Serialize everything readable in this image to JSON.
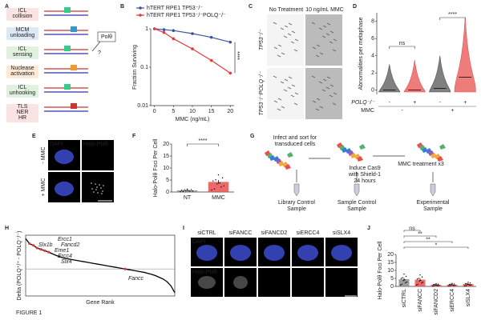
{
  "figure_label": "FIGURE 1",
  "panel_a": {
    "letter": "A",
    "steps": [
      [
        "ICL",
        "collision"
      ],
      [
        "MCM",
        "unloading"
      ],
      [
        "ICL",
        "sensing"
      ],
      [
        "Nuclease",
        "activation"
      ],
      [
        "ICL",
        "unhooking"
      ],
      [
        "TLS",
        "NER",
        "HR"
      ]
    ],
    "enzyme": "Polθ",
    "question": "?"
  },
  "panel_c": {
    "letter": "C",
    "columns": [
      "No Treatment",
      "10 ng/mL MMC"
    ],
    "rows": [
      "TP53⁻/⁻",
      "TP53⁻/⁻POLQ⁻/⁻"
    ]
  },
  "panel_e": {
    "letter": "E",
    "columns": [
      "DAPI",
      "Halo-Polθ"
    ],
    "rows": [
      "- MMC",
      "+ MMC"
    ]
  },
  "panel_g": {
    "letter": "G",
    "steps": [
      [
        "Infect and sort for",
        "transduced cells"
      ],
      [
        "Induce Cas9",
        "with Shield-1",
        "24 hours"
      ],
      [
        "MMC treatment x3"
      ]
    ],
    "samples": [
      [
        "Library Control",
        "Sample"
      ],
      [
        "Sample Control",
        "Sample"
      ],
      [
        "Experimental",
        "Sample"
      ]
    ]
  },
  "panel_i": {
    "letter": "I",
    "columns": [
      "siCTRL",
      "siFANCC",
      "siFANCD2",
      "siERCC4",
      "siSLX4"
    ],
    "rows": [
      "DAPI",
      "Halo-Polθ"
    ]
  },
  "chart_data": [
    {
      "letter": "B",
      "type": "line",
      "x": [
        0,
        2.5,
        5,
        10,
        15,
        20
      ],
      "xlim": [
        -1,
        21
      ],
      "xticks": [
        0,
        5,
        10,
        15,
        20
      ],
      "ylim": [
        0.01,
        1
      ],
      "yticks": [
        0.01,
        0.1,
        1
      ],
      "log_scale": true,
      "xlabel": "MMC (ng/mL)",
      "ylabel": "Fraction Surviving",
      "annotation": "****",
      "series": [
        {
          "name": "hTERT RPE1 TP53⁻/⁻",
          "color": "#3a54a4",
          "values": [
            1,
            0.95,
            0.9,
            0.75,
            0.6,
            0.45
          ]
        },
        {
          "name": "hTERT RPE1 TP53⁻/⁻POLQ⁻/⁻",
          "color": "#e03a3a",
          "values": [
            1,
            0.8,
            0.55,
            0.3,
            0.15,
            0.07
          ]
        }
      ]
    },
    {
      "letter": "D",
      "type": "violin",
      "ylabel": "Abnormalities per metaphase",
      "ylim": [
        -0.5,
        9
      ],
      "yticks": [
        0,
        2,
        4,
        6,
        8
      ],
      "values": [
        0,
        0,
        0.2,
        1.5
      ],
      "maxima": [
        3,
        3.5,
        4,
        8.5
      ],
      "colors": [
        "#555555",
        "#e8504f",
        "#555555",
        "#e8504f"
      ],
      "row_labels": [
        "POLQ⁻/⁻",
        "MMC"
      ],
      "polq_signs": [
        "-",
        "+",
        "-",
        "+"
      ],
      "mmc_signs": [
        "-",
        "+"
      ],
      "annotations": [
        "ns",
        "****"
      ]
    },
    {
      "letter": "F",
      "type": "bar",
      "categories": [
        "NT",
        "MMC"
      ],
      "values": [
        0.7,
        4.2
      ],
      "errors": [
        0.3,
        0.8
      ],
      "colors": [
        "#8c8c8c",
        "#e8504f"
      ],
      "ylim": [
        0,
        20
      ],
      "yticks": [
        0,
        5,
        10,
        15,
        20
      ],
      "ylabel": "Halo-Polθ Foci Per Cell",
      "annotation": "****"
    },
    {
      "letter": "H",
      "type": "rank",
      "ylim": [
        -0.8,
        1
      ],
      "baseline": 0,
      "xlabel": "Gene Rank",
      "ylabel": "Delta (POLQ⁺/⁺ - POLQ⁻/⁻)",
      "values": [
        0.9,
        0.75,
        0.7,
        0.62,
        0.58,
        0.54,
        0.5,
        0.45,
        0.4,
        0.36,
        0.32,
        0.3,
        0.28,
        0.26,
        0.24,
        0.22,
        0.2,
        0.18,
        0.16,
        0.14,
        0.12,
        0.1,
        0.08,
        0.06,
        0.04,
        0.02,
        0,
        -0.02,
        -0.04,
        -0.06,
        -0.08,
        -0.1,
        -0.13,
        -0.16,
        -0.2,
        -0.25,
        -0.3,
        -0.38,
        -0.5,
        -0.7
      ],
      "genes": [
        {
          "name": "Slx1b",
          "index": 1
        },
        {
          "name": "Ercc1",
          "index": 2
        },
        {
          "name": "Fancd2",
          "index": 3
        },
        {
          "name": "Eme1",
          "index": 4
        },
        {
          "name": "Ercc4",
          "index": 5
        },
        {
          "name": "Slx4",
          "index": 6
        },
        {
          "name": "Fancc",
          "index": 26
        }
      ]
    },
    {
      "letter": "J",
      "type": "bar",
      "categories": [
        "siCTRL",
        "siFANCC",
        "siFANCD2",
        "siERCC4",
        "siSLX4"
      ],
      "values": [
        4.5,
        4.2,
        1.0,
        1.1,
        1.5
      ],
      "errors": [
        0.8,
        0.9,
        0.3,
        0.3,
        0.4
      ],
      "colors": [
        "#8c8c8c",
        "#e8504f",
        "#e8504f",
        "#e8504f",
        "#e8504f"
      ],
      "ylim": [
        0,
        20
      ],
      "yticks": [
        0,
        5,
        10,
        15,
        20
      ],
      "ylabel": "Halo-Polθ Foci Per Cell",
      "comparisons": [
        {
          "label": "ns",
          "to": 1
        },
        {
          "label": "**",
          "to": 2
        },
        {
          "label": "**",
          "to": 3
        },
        {
          "label": "*",
          "to": 4
        }
      ]
    }
  ]
}
